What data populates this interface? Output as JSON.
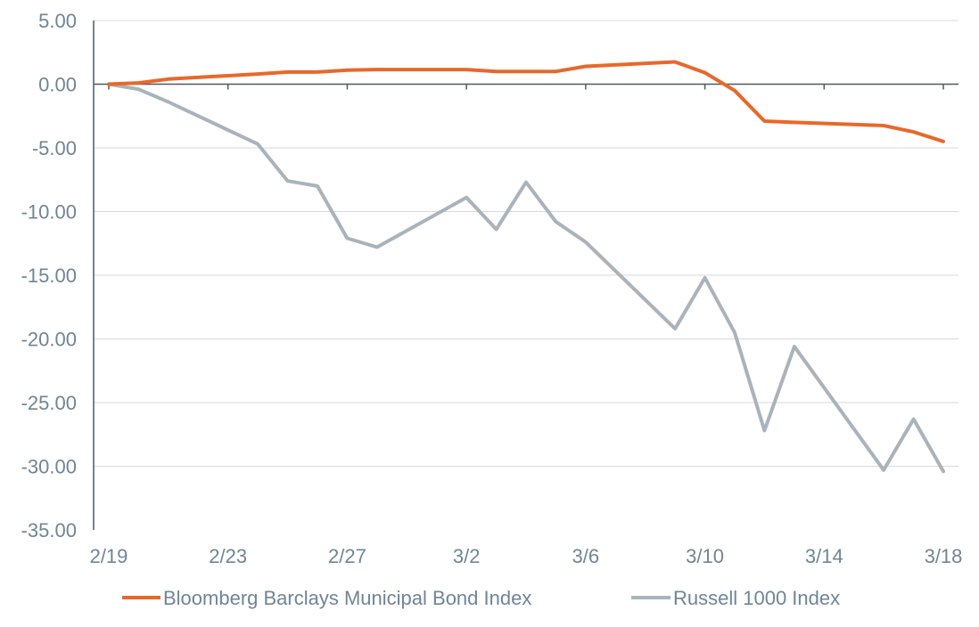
{
  "chart_data": {
    "type": "line",
    "title": "",
    "xlabel": "",
    "ylabel": "",
    "ylim": [
      -35,
      5
    ],
    "y_ticks": [
      "5.00",
      "0.00",
      "-5.00",
      "-10.00",
      "-15.00",
      "-20.00",
      "-25.00",
      "-30.00",
      "-35.00"
    ],
    "x_tick_labels": [
      "2/19",
      "2/23",
      "2/27",
      "3/2",
      "3/6",
      "3/10",
      "3/14",
      "3/18"
    ],
    "grid": "horizontal",
    "legend_position": "bottom",
    "x": [
      "2/19",
      "2/20",
      "2/21",
      "2/24",
      "2/25",
      "2/26",
      "2/27",
      "2/28",
      "3/2",
      "3/3",
      "3/4",
      "3/5",
      "3/6",
      "3/9",
      "3/10",
      "3/11",
      "3/12",
      "3/13",
      "3/16",
      "3/17",
      "3/18"
    ],
    "series": [
      {
        "name": "Bloomberg Barclays Municipal Bond Index",
        "color": "#e8682a",
        "values": [
          0,
          0.1,
          0.4,
          0.8,
          0.95,
          0.95,
          1.1,
          1.15,
          1.15,
          1.0,
          1.0,
          1.0,
          1.4,
          1.75,
          0.9,
          -0.5,
          -2.9,
          -3.0,
          -3.25,
          -3.75,
          -4.5
        ]
      },
      {
        "name": "Russell 1000 Index",
        "color": "#a9b3bb",
        "values": [
          0,
          -0.4,
          -1.4,
          -4.7,
          -7.6,
          -8.0,
          -12.1,
          -12.8,
          -8.9,
          -11.4,
          -7.7,
          -10.8,
          -12.4,
          -19.2,
          -15.2,
          -19.5,
          -27.2,
          -20.6,
          -30.3,
          -26.3,
          -30.4
        ]
      }
    ]
  }
}
